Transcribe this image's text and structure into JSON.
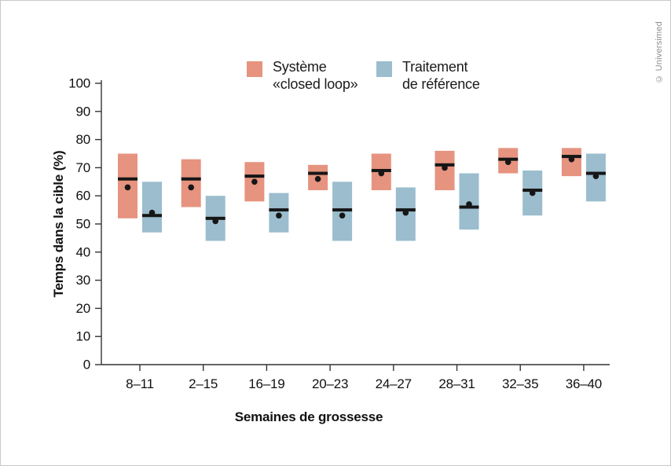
{
  "figure": {
    "copyright": "© Universimed"
  },
  "chart_data": {
    "type": "bar",
    "subtype": "floating-range-box-with-median-line-and-mean-dot",
    "title": "",
    "xlabel": "Semaines de grossesse",
    "ylabel": "Temps dans la cible (%)",
    "ylim": [
      0,
      100
    ],
    "yticks": [
      0,
      10,
      20,
      30,
      40,
      50,
      60,
      70,
      80,
      90,
      100
    ],
    "grid": false,
    "legend_position": "top",
    "marker_color": "#161616",
    "categories": [
      "8–11",
      "2–15",
      "16–19",
      "20–23",
      "24–27",
      "28–31",
      "32–35",
      "36–40"
    ],
    "series": [
      {
        "name": "Système «closed loop»",
        "legend_lines": [
          "Système",
          "«closed loop»"
        ],
        "color": "#E6937F",
        "boxes": [
          {
            "low": 52,
            "high": 75,
            "median": 66,
            "mean": 63
          },
          {
            "low": 56,
            "high": 73,
            "median": 66,
            "mean": 63
          },
          {
            "low": 58,
            "high": 72,
            "median": 67,
            "mean": 65
          },
          {
            "low": 62,
            "high": 71,
            "median": 68,
            "mean": 66
          },
          {
            "low": 62,
            "high": 75,
            "median": 69,
            "mean": 68
          },
          {
            "low": 62,
            "high": 76,
            "median": 71,
            "mean": 70
          },
          {
            "low": 68,
            "high": 77,
            "median": 73,
            "mean": 72
          },
          {
            "low": 67,
            "high": 77,
            "median": 74,
            "mean": 73
          }
        ]
      },
      {
        "name": "Traitement de référence",
        "legend_lines": [
          "Traitement",
          "de référence"
        ],
        "color": "#9BBDCD",
        "boxes": [
          {
            "low": 47,
            "high": 65,
            "median": 53,
            "mean": 54
          },
          {
            "low": 44,
            "high": 60,
            "median": 52,
            "mean": 51
          },
          {
            "low": 47,
            "high": 61,
            "median": 55,
            "mean": 53
          },
          {
            "low": 44,
            "high": 65,
            "median": 55,
            "mean": 53
          },
          {
            "low": 44,
            "high": 63,
            "median": 55,
            "mean": 54
          },
          {
            "low": 48,
            "high": 68,
            "median": 56,
            "mean": 57
          },
          {
            "low": 53,
            "high": 69,
            "median": 62,
            "mean": 61
          },
          {
            "low": 58,
            "high": 75,
            "median": 68,
            "mean": 67
          }
        ]
      }
    ]
  }
}
